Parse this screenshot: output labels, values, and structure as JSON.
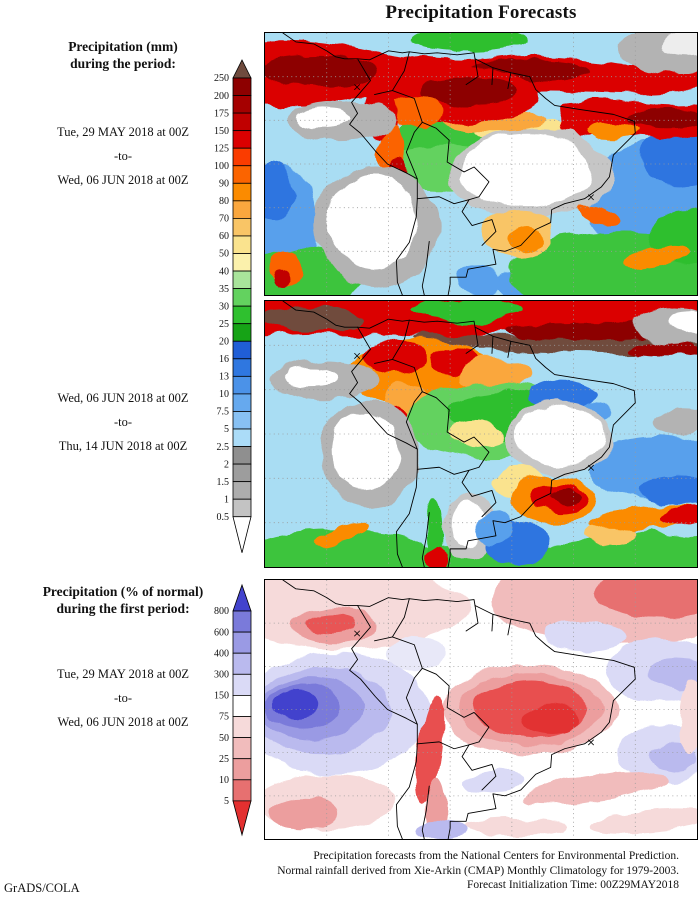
{
  "title": "Precipitation Forecasts",
  "left_column": {
    "panel1_heading": [
      "Precipitation (mm)",
      "during the period:"
    ],
    "period1": [
      "Tue, 29 MAY 2018 at 00Z",
      "-to-",
      "Wed, 06 JUN 2018 at 00Z"
    ],
    "period2": [
      "Wed, 06 JUN 2018 at 00Z",
      "-to-",
      "Thu, 14 JUN 2018 at 00Z"
    ],
    "panel2_heading": [
      "Precipitation (% of normal)",
      "during the first period:"
    ],
    "period3": [
      "Tue, 29 MAY 2018 at 00Z",
      "-to-",
      "Wed, 06 JUN 2018 at 00Z"
    ]
  },
  "colorbar_mm": {
    "units": "mm",
    "labels": [
      "250",
      "200",
      "175",
      "150",
      "125",
      "100",
      "90",
      "80",
      "70",
      "60",
      "50",
      "40",
      "35",
      "30",
      "25",
      "20",
      "16",
      "13",
      "10",
      "7.5",
      "5",
      "2.5",
      "2",
      "1.5",
      "1",
      "0.5"
    ],
    "top_arrow_color": "#6f4b3e",
    "segment_colors": [
      "#8d0000",
      "#a50000",
      "#c00000",
      "#db0000",
      "#fa3c00",
      "#fb6400",
      "#fb8b00",
      "#faa73e",
      "#f9c566",
      "#fae38e",
      "#fbf1ac",
      "#a9e49b",
      "#63d25f",
      "#2fc02f",
      "#16a316",
      "#205ed6",
      "#2f77e0",
      "#4b92e8",
      "#66a9ee",
      "#88c1f3",
      "#abdcf8",
      "#8f8f8f",
      "#9d9d9d",
      "#adadad",
      "#c3c3c3"
    ],
    "bottom_arrow_color": "#ffffff"
  },
  "colorbar_pct": {
    "units": "% of normal",
    "labels": [
      "800",
      "600",
      "400",
      "300",
      "150",
      "75",
      "50",
      "25",
      "10",
      "5"
    ],
    "top_arrow_color": "#4343cd",
    "segment_colors": [
      "#7a7ada",
      "#9a9ae4",
      "#babaee",
      "#dadaf6",
      "#ffffff",
      "#f6dada",
      "#f1bcbc",
      "#ec9e9e",
      "#e77070"
    ],
    "bottom_arrow_color": "#e33030"
  },
  "footer": {
    "line1": "Precipitation forecasts from the National Centers for Environmental Prediction.",
    "line2": "Normal rainfall derived from Xie-Arkin (CMAP) Monthly Climatology for 1979-2003.",
    "line3": "Forecast Initialization Time: 00Z29MAY2018"
  },
  "credit": "GrADS/COLA",
  "chart_data": [
    {
      "type": "heatmap",
      "title": "Precipitation (mm): Tue 29 MAY 2018 00Z to Wed 06 JUN 2018 00Z",
      "region": "South America and adjacent oceans",
      "units": "mm",
      "scale_levels": [
        0.5,
        1,
        1.5,
        2,
        2.5,
        5,
        7.5,
        10,
        13,
        16,
        20,
        25,
        30,
        35,
        40,
        50,
        60,
        70,
        80,
        90,
        100,
        125,
        150,
        175,
        200,
        250
      ],
      "legend_position": "left of maps, vertical arrow bar",
      "notable_features": [
        "Heavy rain band (>150 mm, dark red) along the ITCZ across Colombia, Venezuela, the Guianas and the tropical Atlantic",
        "Very dry white/gray region (<2.5 mm) over east-central Brazil",
        "Dry gray/white zone over the subtropical southeast Pacific off Peru and Chile",
        "Orange/yellow (40-90 mm) band over southern Brazil and Paraguay",
        "Green (25-40 mm) over the southern Amazon and far South Atlantic",
        "Blue (5-20 mm) over the central South Atlantic and Pacific edges"
      ]
    },
    {
      "type": "heatmap",
      "title": "Precipitation (mm): Wed 06 JUN 2018 00Z to Thu 14 JUN 2018 00Z",
      "region": "South America and adjacent oceans",
      "units": "mm",
      "scale_levels": [
        0.5,
        1,
        1.5,
        2,
        2.5,
        5,
        7.5,
        10,
        13,
        16,
        20,
        25,
        30,
        35,
        40,
        50,
        60,
        70,
        80,
        90,
        100,
        125,
        150,
        175,
        200,
        250
      ],
      "notable_features": [
        "Very heavy rain band (>200 mm, dark maroon/red) along the ITCZ across the far north and tropical Atlantic",
        "Orange/red (60-150 mm) over Colombia, Venezuela and the northwest Amazon",
        "Green (25-40 mm) across the central Amazon basin",
        "White/gray dry blob (<2.5 mm) over east-central Brazil",
        "Red maximum (100-200 mm) over southern Brazil / Parana region",
        "Green and orange bands across the far South Atlantic and southeast Pacific"
      ]
    },
    {
      "type": "heatmap",
      "title": "Precipitation (% of normal): Tue 29 MAY 2018 00Z to Wed 06 JUN 2018 00Z",
      "region": "South America and adjacent oceans",
      "units": "% of normal",
      "scale_levels": [
        5,
        10,
        25,
        50,
        75,
        150,
        300,
        400,
        600,
        800
      ],
      "notable_features": [
        "Deep blue maximum (>800% of normal) over the southeast Pacific west of Chile",
        "Large red region (<25% of normal) over central and eastern Brazil",
        "Red band (below normal) across the tropical North Atlantic and top right of domain",
        "Red streak along the Andes of Chile/Argentina",
        "Lavender/blue patches (above normal) over the western South Atlantic",
        "Near-normal white over the Amazon basin"
      ]
    }
  ]
}
